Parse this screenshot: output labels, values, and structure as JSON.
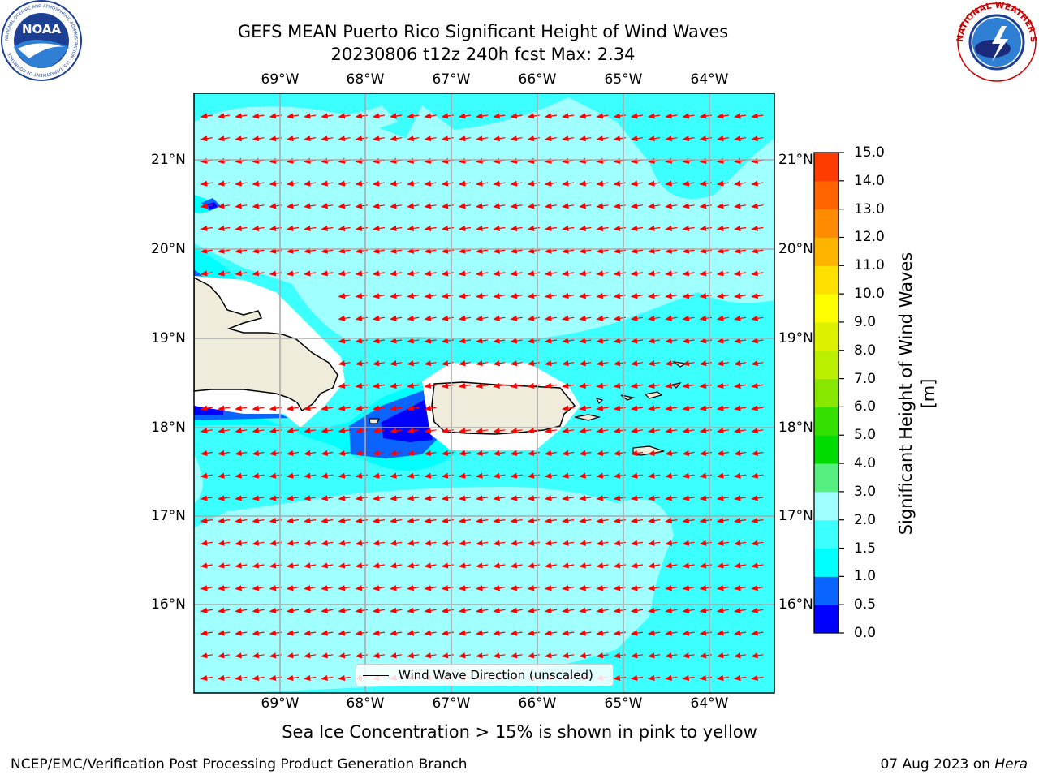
{
  "header": {
    "title_line1": "GEFS MEAN Puerto Rico Significant Height of Wind Waves",
    "title_line2": "20230806 t12z 240h fcst   Max: 2.34"
  },
  "logos": {
    "left": "NOAA",
    "left_ring_text": "NATIONAL OCEANIC AND ATMOSPHERIC ADMINISTRATION · U.S. DEPARTMENT OF COMMERCE",
    "right_ring_text": "NATIONAL WEATHER SERVICE"
  },
  "map": {
    "lon_labels": [
      "69°W",
      "68°W",
      "67°W",
      "66°W",
      "65°W",
      "64°W"
    ],
    "lat_labels": [
      "21°N",
      "20°N",
      "19°N",
      "18°N",
      "17°N",
      "16°N"
    ],
    "legend_label": "Wind Wave Direction (unscaled)",
    "colors": {
      "land": "#efecdc",
      "arrow": "#ff0000",
      "level_0_05": "#0000ff",
      "level_05_10": "#0a64ff",
      "level_10_15": "#00ffff",
      "level_15_20": "#3cffff",
      "level_20_30": "#a0ffff"
    }
  },
  "colorbar": {
    "label": "Significant Height of Wind Waves [m]",
    "ticks": [
      "15.0",
      "14.0",
      "13.0",
      "12.0",
      "11.0",
      "10.0",
      "9.0",
      "8.0",
      "7.0",
      "6.0",
      "5.0",
      "4.0",
      "3.0",
      "2.0",
      "1.5",
      "1.0",
      "0.5",
      "0.0"
    ],
    "colors": [
      "#0000ff",
      "#0a64ff",
      "#00ffff",
      "#3cffff",
      "#a0ffff",
      "#55f080",
      "#00dc00",
      "#33e000",
      "#88e800",
      "#bbf000",
      "#ddf000",
      "#ffff00",
      "#ffe000",
      "#ffb400",
      "#ff8c00",
      "#ff6400",
      "#ff3c00",
      "#ff0000"
    ]
  },
  "footer": {
    "ice_note": "Sea Ice Concentration > 15% is shown in pink to yellow",
    "left": "NCEP/EMC/Verification Post Processing Product Generation Branch",
    "right_prefix": "07 Aug 2023 on ",
    "right_host": "Hera"
  }
}
